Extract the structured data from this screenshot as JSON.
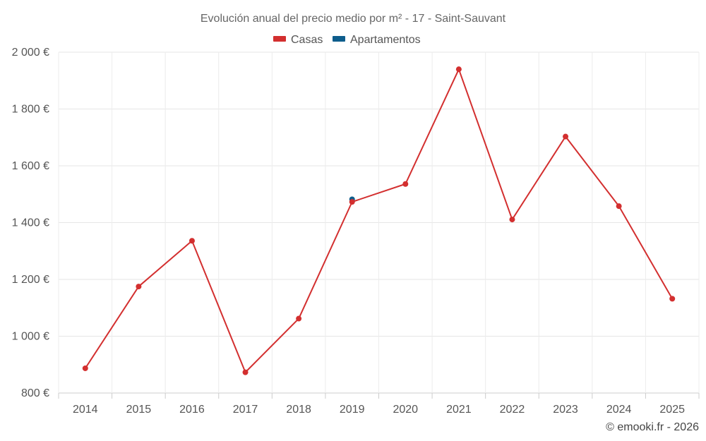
{
  "chart_data": {
    "type": "line",
    "title": "Evolución anual del precio medio por m² - 17 - Saint-Sauvant",
    "categories": [
      "2014",
      "2015",
      "2016",
      "2017",
      "2018",
      "2019",
      "2020",
      "2021",
      "2022",
      "2023",
      "2024",
      "2025"
    ],
    "series": [
      {
        "name": "Casas",
        "color": "#d32f2f",
        "values": [
          887,
          1175,
          1336,
          873,
          1062,
          1473,
          1536,
          1940,
          1411,
          1703,
          1458,
          1132
        ]
      },
      {
        "name": "Apartamentos",
        "color": "#0d5d8c",
        "values": [
          null,
          null,
          null,
          null,
          null,
          1482,
          null,
          null,
          null,
          null,
          null,
          null
        ]
      }
    ],
    "yticks": [
      800,
      1000,
      1200,
      1400,
      1600,
      1800,
      2000
    ],
    "ytick_labels": [
      "800 €",
      "1 000 €",
      "1 200 €",
      "1 400 €",
      "1 600 €",
      "1 800 €",
      "2 000 €"
    ],
    "ylim": [
      800,
      2000
    ],
    "xlabel": "",
    "ylabel": "",
    "grid": true,
    "legend_position": "top-center"
  },
  "credit": "© emooki.fr - 2026"
}
